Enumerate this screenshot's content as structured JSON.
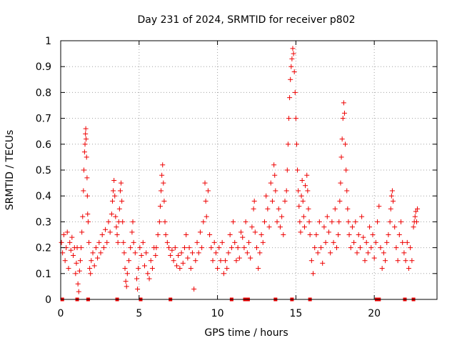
{
  "chart_data": {
    "type": "scatter",
    "title": "Day 231 of 2024, SRMTID for receiver p802",
    "xlabel": "GPS time / hours",
    "ylabel": "SRMTID / TECUs",
    "xlim": [
      0,
      24
    ],
    "ylim": [
      0,
      1
    ],
    "xticks": [
      0,
      5,
      10,
      15,
      20
    ],
    "xtick_labels": [
      "0",
      "5",
      "10",
      "15",
      "20"
    ],
    "yticks": [
      0,
      0.1,
      0.2,
      0.3,
      0.4,
      0.5,
      0.6,
      0.7,
      0.8,
      0.9,
      1
    ],
    "ytick_labels": [
      "0",
      "0.1",
      "0.2",
      "0.3",
      "0.4",
      "0.5",
      "0.6",
      "0.7",
      "0.8",
      "0.9",
      "1"
    ],
    "grid": true,
    "marker": "plus",
    "color": "#ee0000",
    "zero_markers": [
      0.1,
      1.05,
      1.75,
      3.6,
      5.1,
      7.0,
      10.9,
      11.75,
      11.95,
      13.7,
      14.75,
      15.9,
      20.15,
      20.3,
      21.95,
      22.5
    ],
    "series": [
      {
        "name": "SRMTID",
        "points": [
          [
            0.05,
            0.22
          ],
          [
            0.12,
            0.18
          ],
          [
            0.2,
            0.25
          ],
          [
            0.28,
            0.15
          ],
          [
            0.35,
            0.2
          ],
          [
            0.42,
            0.26
          ],
          [
            0.5,
            0.12
          ],
          [
            0.58,
            0.22
          ],
          [
            0.65,
            0.19
          ],
          [
            0.72,
            0.24
          ],
          [
            0.8,
            0.17
          ],
          [
            0.88,
            0.2
          ],
          [
            0.95,
            0.1
          ],
          [
            1.0,
            0.14
          ],
          [
            1.05,
            0.2
          ],
          [
            1.1,
            0.06
          ],
          [
            1.15,
            0.03
          ],
          [
            1.2,
            0.11
          ],
          [
            1.25,
            0.15
          ],
          [
            1.3,
            0.2
          ],
          [
            1.35,
            0.26
          ],
          [
            1.4,
            0.32
          ],
          [
            1.45,
            0.42
          ],
          [
            1.48,
            0.5
          ],
          [
            1.52,
            0.57
          ],
          [
            1.55,
            0.6
          ],
          [
            1.58,
            0.64
          ],
          [
            1.6,
            0.66
          ],
          [
            1.62,
            0.62
          ],
          [
            1.65,
            0.55
          ],
          [
            1.68,
            0.47
          ],
          [
            1.7,
            0.4
          ],
          [
            1.72,
            0.33
          ],
          [
            1.75,
            0.3
          ],
          [
            1.8,
            0.22
          ],
          [
            1.85,
            0.12
          ],
          [
            1.9,
            0.1
          ],
          [
            1.95,
            0.15
          ],
          [
            2.05,
            0.18
          ],
          [
            2.15,
            0.13
          ],
          [
            2.25,
            0.2
          ],
          [
            2.35,
            0.16
          ],
          [
            2.45,
            0.22
          ],
          [
            2.55,
            0.18
          ],
          [
            2.65,
            0.25
          ],
          [
            2.75,
            0.2
          ],
          [
            2.85,
            0.27
          ],
          [
            2.95,
            0.22
          ],
          [
            3.05,
            0.3
          ],
          [
            3.15,
            0.26
          ],
          [
            3.25,
            0.33
          ],
          [
            3.3,
            0.38
          ],
          [
            3.35,
            0.42
          ],
          [
            3.4,
            0.46
          ],
          [
            3.45,
            0.4
          ],
          [
            3.5,
            0.32
          ],
          [
            3.55,
            0.28
          ],
          [
            3.6,
            0.25
          ],
          [
            3.65,
            0.22
          ],
          [
            3.7,
            0.3
          ],
          [
            3.75,
            0.35
          ],
          [
            3.8,
            0.42
          ],
          [
            3.85,
            0.45
          ],
          [
            3.9,
            0.38
          ],
          [
            3.95,
            0.3
          ],
          [
            4.0,
            0.22
          ],
          [
            4.05,
            0.18
          ],
          [
            4.1,
            0.12
          ],
          [
            4.15,
            0.07
          ],
          [
            4.2,
            0.05
          ],
          [
            4.25,
            0.1
          ],
          [
            4.35,
            0.15
          ],
          [
            4.45,
            0.2
          ],
          [
            4.55,
            0.26
          ],
          [
            4.6,
            0.3
          ],
          [
            4.65,
            0.22
          ],
          [
            4.75,
            0.18
          ],
          [
            4.85,
            0.08
          ],
          [
            4.9,
            0.04
          ],
          [
            4.95,
            0.12
          ],
          [
            5.05,
            0.2
          ],
          [
            5.15,
            0.17
          ],
          [
            5.25,
            0.22
          ],
          [
            5.35,
            0.13
          ],
          [
            5.45,
            0.18
          ],
          [
            5.55,
            0.1
          ],
          [
            5.65,
            0.08
          ],
          [
            5.75,
            0.15
          ],
          [
            5.85,
            0.12
          ],
          [
            5.95,
            0.2
          ],
          [
            6.05,
            0.17
          ],
          [
            6.1,
            0.2
          ],
          [
            6.2,
            0.25
          ],
          [
            6.3,
            0.3
          ],
          [
            6.35,
            0.36
          ],
          [
            6.4,
            0.42
          ],
          [
            6.45,
            0.48
          ],
          [
            6.5,
            0.52
          ],
          [
            6.55,
            0.45
          ],
          [
            6.6,
            0.38
          ],
          [
            6.65,
            0.3
          ],
          [
            6.7,
            0.25
          ],
          [
            6.8,
            0.22
          ],
          [
            6.9,
            0.2
          ],
          [
            7.0,
            0.17
          ],
          [
            7.1,
            0.19
          ],
          [
            7.2,
            0.15
          ],
          [
            7.3,
            0.2
          ],
          [
            7.4,
            0.13
          ],
          [
            7.5,
            0.17
          ],
          [
            7.6,
            0.12
          ],
          [
            7.7,
            0.18
          ],
          [
            7.8,
            0.14
          ],
          [
            7.9,
            0.2
          ],
          [
            8.0,
            0.25
          ],
          [
            8.1,
            0.16
          ],
          [
            8.2,
            0.2
          ],
          [
            8.3,
            0.12
          ],
          [
            8.4,
            0.18
          ],
          [
            8.5,
            0.04
          ],
          [
            8.6,
            0.15
          ],
          [
            8.7,
            0.22
          ],
          [
            8.8,
            0.18
          ],
          [
            8.9,
            0.26
          ],
          [
            9.0,
            0.2
          ],
          [
            9.1,
            0.3
          ],
          [
            9.2,
            0.45
          ],
          [
            9.25,
            0.38
          ],
          [
            9.3,
            0.32
          ],
          [
            9.4,
            0.42
          ],
          [
            9.5,
            0.25
          ],
          [
            9.6,
            0.2
          ],
          [
            9.7,
            0.15
          ],
          [
            9.8,
            0.22
          ],
          [
            9.9,
            0.18
          ],
          [
            10.0,
            0.12
          ],
          [
            10.1,
            0.2
          ],
          [
            10.2,
            0.15
          ],
          [
            10.3,
            0.22
          ],
          [
            10.4,
            0.1
          ],
          [
            10.5,
            0.15
          ],
          [
            10.6,
            0.12
          ],
          [
            10.7,
            0.18
          ],
          [
            10.8,
            0.25
          ],
          [
            10.9,
            0.2
          ],
          [
            11.0,
            0.3
          ],
          [
            11.1,
            0.22
          ],
          [
            11.2,
            0.15
          ],
          [
            11.3,
            0.2
          ],
          [
            11.4,
            0.16
          ],
          [
            11.5,
            0.26
          ],
          [
            11.6,
            0.24
          ],
          [
            11.7,
            0.2
          ],
          [
            11.8,
            0.3
          ],
          [
            11.9,
            0.18
          ],
          [
            12.0,
            0.22
          ],
          [
            12.1,
            0.16
          ],
          [
            12.2,
            0.28
          ],
          [
            12.3,
            0.35
          ],
          [
            12.35,
            0.38
          ],
          [
            12.4,
            0.26
          ],
          [
            12.5,
            0.2
          ],
          [
            12.6,
            0.12
          ],
          [
            12.7,
            0.18
          ],
          [
            12.8,
            0.25
          ],
          [
            12.9,
            0.22
          ],
          [
            13.0,
            0.3
          ],
          [
            13.1,
            0.4
          ],
          [
            13.2,
            0.35
          ],
          [
            13.3,
            0.28
          ],
          [
            13.4,
            0.45
          ],
          [
            13.5,
            0.38
          ],
          [
            13.6,
            0.52
          ],
          [
            13.65,
            0.48
          ],
          [
            13.7,
            0.42
          ],
          [
            13.8,
            0.3
          ],
          [
            13.9,
            0.35
          ],
          [
            14.0,
            0.28
          ],
          [
            14.1,
            0.32
          ],
          [
            14.2,
            0.25
          ],
          [
            14.3,
            0.38
          ],
          [
            14.4,
            0.42
          ],
          [
            14.45,
            0.5
          ],
          [
            14.5,
            0.6
          ],
          [
            14.55,
            0.7
          ],
          [
            14.6,
            0.78
          ],
          [
            14.65,
            0.85
          ],
          [
            14.7,
            0.9
          ],
          [
            14.75,
            0.93
          ],
          [
            14.8,
            0.97
          ],
          [
            14.85,
            0.95
          ],
          [
            14.9,
            0.88
          ],
          [
            14.95,
            0.8
          ],
          [
            15.0,
            0.7
          ],
          [
            15.05,
            0.6
          ],
          [
            15.1,
            0.5
          ],
          [
            15.15,
            0.42
          ],
          [
            15.2,
            0.36
          ],
          [
            15.25,
            0.3
          ],
          [
            15.3,
            0.26
          ],
          [
            15.35,
            0.4
          ],
          [
            15.4,
            0.46
          ],
          [
            15.45,
            0.38
          ],
          [
            15.5,
            0.32
          ],
          [
            15.55,
            0.28
          ],
          [
            15.6,
            0.44
          ],
          [
            15.7,
            0.48
          ],
          [
            15.75,
            0.42
          ],
          [
            15.8,
            0.35
          ],
          [
            15.85,
            0.3
          ],
          [
            15.9,
            0.25
          ],
          [
            16.0,
            0.15
          ],
          [
            16.1,
            0.1
          ],
          [
            16.2,
            0.2
          ],
          [
            16.3,
            0.25
          ],
          [
            16.4,
            0.18
          ],
          [
            16.5,
            0.3
          ],
          [
            16.6,
            0.2
          ],
          [
            16.7,
            0.14
          ],
          [
            16.8,
            0.28
          ],
          [
            16.9,
            0.22
          ],
          [
            17.0,
            0.32
          ],
          [
            17.1,
            0.26
          ],
          [
            17.2,
            0.18
          ],
          [
            17.3,
            0.3
          ],
          [
            17.4,
            0.22
          ],
          [
            17.5,
            0.35
          ],
          [
            17.6,
            0.2
          ],
          [
            17.7,
            0.25
          ],
          [
            17.75,
            0.3
          ],
          [
            17.8,
            0.38
          ],
          [
            17.85,
            0.45
          ],
          [
            17.9,
            0.55
          ],
          [
            17.95,
            0.62
          ],
          [
            18.0,
            0.7
          ],
          [
            18.05,
            0.76
          ],
          [
            18.1,
            0.72
          ],
          [
            18.15,
            0.6
          ],
          [
            18.2,
            0.5
          ],
          [
            18.25,
            0.42
          ],
          [
            18.3,
            0.35
          ],
          [
            18.35,
            0.3
          ],
          [
            18.4,
            0.25
          ],
          [
            18.5,
            0.2
          ],
          [
            18.6,
            0.28
          ],
          [
            18.7,
            0.22
          ],
          [
            18.8,
            0.3
          ],
          [
            18.9,
            0.18
          ],
          [
            19.0,
            0.25
          ],
          [
            19.1,
            0.2
          ],
          [
            19.2,
            0.32
          ],
          [
            19.3,
            0.24
          ],
          [
            19.4,
            0.15
          ],
          [
            19.5,
            0.22
          ],
          [
            19.6,
            0.18
          ],
          [
            19.7,
            0.28
          ],
          [
            19.8,
            0.2
          ],
          [
            19.9,
            0.25
          ],
          [
            20.0,
            0.16
          ],
          [
            20.1,
            0.22
          ],
          [
            20.2,
            0.3
          ],
          [
            20.3,
            0.36
          ],
          [
            20.4,
            0.2
          ],
          [
            20.5,
            0.12
          ],
          [
            20.6,
            0.18
          ],
          [
            20.7,
            0.15
          ],
          [
            20.8,
            0.22
          ],
          [
            20.9,
            0.25
          ],
          [
            21.0,
            0.3
          ],
          [
            21.05,
            0.35
          ],
          [
            21.1,
            0.4
          ],
          [
            21.15,
            0.42
          ],
          [
            21.2,
            0.38
          ],
          [
            21.3,
            0.28
          ],
          [
            21.4,
            0.2
          ],
          [
            21.5,
            0.15
          ],
          [
            21.6,
            0.25
          ],
          [
            21.7,
            0.3
          ],
          [
            21.8,
            0.22
          ],
          [
            21.9,
            0.18
          ],
          [
            22.0,
            0.15
          ],
          [
            22.1,
            0.22
          ],
          [
            22.2,
            0.12
          ],
          [
            22.3,
            0.2
          ],
          [
            22.4,
            0.15
          ],
          [
            22.5,
            0.28
          ],
          [
            22.55,
            0.3
          ],
          [
            22.6,
            0.32
          ],
          [
            22.65,
            0.34
          ],
          [
            22.7,
            0.3
          ],
          [
            22.75,
            0.35
          ]
        ]
      }
    ]
  }
}
